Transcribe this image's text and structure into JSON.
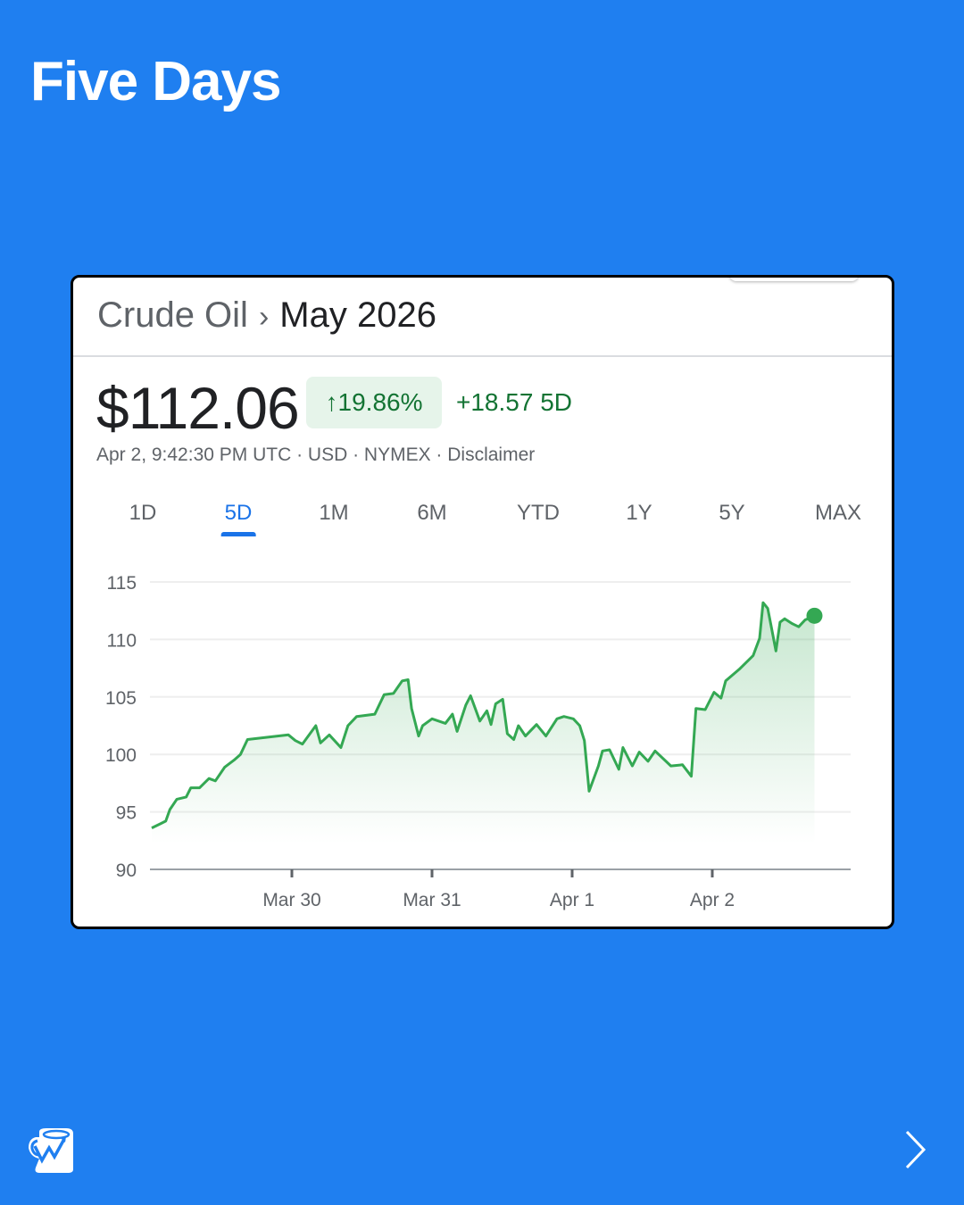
{
  "page_title": "Five Days",
  "card": {
    "breadcrumb": {
      "parent": "Crude Oil",
      "current": "May 2026",
      "separator_icon": "chevron-right-icon"
    },
    "price": "$112.06",
    "change_percent": "19.86%",
    "change_icon": "arrow-up-icon",
    "change_absolute": "+18.57 5D",
    "meta": "Apr 2, 9:42:30 PM UTC · USD · NYMEX · Disclaimer",
    "ranges": [
      {
        "label": "1D",
        "active": false
      },
      {
        "label": "5D",
        "active": true
      },
      {
        "label": "1M",
        "active": false
      },
      {
        "label": "6M",
        "active": false
      },
      {
        "label": "YTD",
        "active": false
      },
      {
        "label": "1Y",
        "active": false
      },
      {
        "label": "5Y",
        "active": false
      },
      {
        "label": "MAX",
        "active": false
      }
    ]
  },
  "footer": {
    "logo_icon": "mug-chart-logo-icon",
    "next_icon": "chevron-right-icon"
  },
  "colors": {
    "background": "#1f7ff0",
    "line": "#34a853",
    "positive": "#137333",
    "active_tab": "#1a73e8"
  },
  "chart_data": {
    "type": "area",
    "title": "",
    "xlabel": "",
    "ylabel": "",
    "ylim": [
      90,
      115
    ],
    "yticks": [
      "115",
      "110",
      "105",
      "100",
      "95",
      "90"
    ],
    "xticks": [
      "Mar 30",
      "Mar 31",
      "Apr 1",
      "Apr 2"
    ],
    "grid": true,
    "series": [
      {
        "points": [
          [
            "Mar 29 00:00",
            93.6
          ],
          [
            "Mar 29 01:36",
            94.0
          ],
          [
            "Mar 29 02:24",
            94.2
          ],
          [
            "Mar 29 03:06",
            95.2
          ],
          [
            "Mar 29 04:18",
            96.1
          ],
          [
            "Mar 29 05:54",
            96.3
          ],
          [
            "Mar 29 06:42",
            97.1
          ],
          [
            "Mar 29 08:12",
            97.1
          ],
          [
            "Mar 29 09:48",
            97.9
          ],
          [
            "Mar 29 10:54",
            97.7
          ],
          [
            "Mar 29 12:30",
            98.9
          ],
          [
            "Mar 29 14:06",
            99.5
          ],
          [
            "Mar 29 15:12",
            100.0
          ],
          [
            "Mar 29 16:24",
            101.3
          ],
          [
            "Mar 29 23:24",
            101.7
          ],
          [
            "Mar 30 00:36",
            101.2
          ],
          [
            "Mar 30 01:48",
            100.9
          ],
          [
            "Mar 30 04:06",
            102.5
          ],
          [
            "Mar 30 04:54",
            101.0
          ],
          [
            "Mar 30 06:24",
            101.7
          ],
          [
            "Mar 30 08:24",
            100.6
          ],
          [
            "Mar 30 09:36",
            102.5
          ],
          [
            "Mar 30 11:06",
            103.3
          ],
          [
            "Mar 30 14:12",
            103.5
          ],
          [
            "Mar 30 15:48",
            105.2
          ],
          [
            "Mar 30 17:24",
            105.3
          ],
          [
            "Mar 30 18:54",
            106.4
          ],
          [
            "Mar 30 19:54",
            106.5
          ],
          [
            "Mar 30 20:30",
            104.0
          ],
          [
            "Mar 30 21:42",
            101.6
          ],
          [
            "Mar 30 22:24",
            102.5
          ],
          [
            "Mar 31 00:00",
            103.1
          ],
          [
            "Mar 31 02:18",
            102.7
          ],
          [
            "Mar 31 03:30",
            103.5
          ],
          [
            "Mar 31 04:18",
            102.0
          ],
          [
            "Mar 31 05:48",
            104.3
          ],
          [
            "Mar 31 06:36",
            105.1
          ],
          [
            "Mar 31 08:12",
            102.9
          ],
          [
            "Mar 31 09:24",
            103.8
          ],
          [
            "Mar 31 10:06",
            102.6
          ],
          [
            "Mar 31 10:54",
            104.4
          ],
          [
            "Mar 31 12:06",
            104.8
          ],
          [
            "Mar 31 12:54",
            101.8
          ],
          [
            "Mar 31 14:00",
            101.3
          ],
          [
            "Mar 31 14:48",
            102.5
          ],
          [
            "Mar 31 16:00",
            101.6
          ],
          [
            "Mar 31 17:54",
            102.6
          ],
          [
            "Mar 31 19:30",
            101.6
          ],
          [
            "Mar 31 21:24",
            103.1
          ],
          [
            "Mar 31 22:36",
            103.3
          ],
          [
            "Apr 1 00:12",
            103.1
          ],
          [
            "Apr 1 01:18",
            102.5
          ],
          [
            "Apr 1 02:06",
            101.2
          ],
          [
            "Apr 1 02:54",
            96.8
          ],
          [
            "Apr 1 04:30",
            99.0
          ],
          [
            "Apr 1 05:12",
            100.3
          ],
          [
            "Apr 1 06:24",
            100.4
          ],
          [
            "Apr 1 08:00",
            98.7
          ],
          [
            "Apr 1 08:42",
            100.6
          ],
          [
            "Apr 1 10:18",
            99.0
          ],
          [
            "Apr 1 11:30",
            100.2
          ],
          [
            "Apr 1 13:00",
            99.4
          ],
          [
            "Apr 1 14:12",
            100.3
          ],
          [
            "Apr 1 16:54",
            99.0
          ],
          [
            "Apr 1 18:54",
            99.1
          ],
          [
            "Apr 1 20:24",
            98.1
          ],
          [
            "Apr 1 21:12",
            104.0
          ],
          [
            "Apr 1 22:48",
            103.9
          ],
          [
            "Apr 2 00:18",
            105.4
          ],
          [
            "Apr 2 01:30",
            104.9
          ],
          [
            "Apr 2 02:18",
            106.4
          ],
          [
            "Apr 2 04:36",
            107.4
          ],
          [
            "Apr 2 07:00",
            108.6
          ],
          [
            "Apr 2 08:06",
            110.1
          ],
          [
            "Apr 2 08:42",
            113.2
          ],
          [
            "Apr 2 09:30",
            112.7
          ],
          [
            "Apr 2 10:06",
            111.1
          ],
          [
            "Apr 2 10:54",
            109.0
          ],
          [
            "Apr 2 11:36",
            111.5
          ],
          [
            "Apr 2 12:24",
            111.8
          ],
          [
            "Apr 2 13:36",
            111.4
          ],
          [
            "Apr 2 14:48",
            111.1
          ],
          [
            "Apr 2 15:54",
            111.7
          ],
          [
            "Apr 2 17:30",
            112.06
          ]
        ]
      }
    ]
  }
}
